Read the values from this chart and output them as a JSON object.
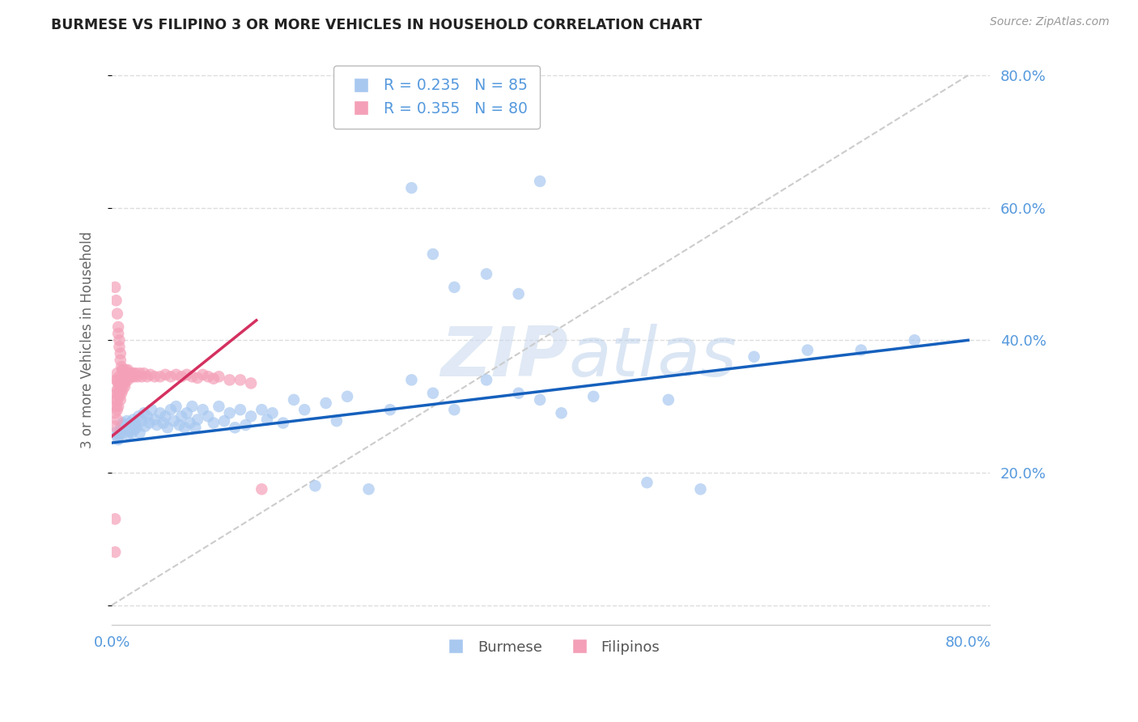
{
  "title": "BURMESE VS FILIPINO 3 OR MORE VEHICLES IN HOUSEHOLD CORRELATION CHART",
  "source": "Source: ZipAtlas.com",
  "ylabel": "3 or more Vehicles in Household",
  "xlim": [
    0.0,
    0.82
  ],
  "ylim": [
    -0.03,
    0.83
  ],
  "yticks": [
    0.0,
    0.2,
    0.4,
    0.6,
    0.8
  ],
  "xticks": [
    0.0,
    0.1,
    0.2,
    0.3,
    0.4,
    0.5,
    0.6,
    0.7,
    0.8
  ],
  "burmese_color": "#a8c8f0",
  "filipino_color": "#f4a0b8",
  "burmese_R": 0.235,
  "burmese_N": 85,
  "filipino_R": 0.355,
  "filipino_N": 80,
  "trend_blue": "#1560bd",
  "trend_pink": "#d43060",
  "ref_line_color": "#cccccc",
  "grid_color": "#dddddd",
  "axis_color": "#5599dd",
  "watermark_color": "#c8d8ee",
  "background_color": "#ffffff",
  "burmese_x": [
    0.003,
    0.005,
    0.006,
    0.007,
    0.008,
    0.009,
    0.01,
    0.01,
    0.011,
    0.012,
    0.013,
    0.014,
    0.015,
    0.015,
    0.016,
    0.017,
    0.018,
    0.019,
    0.02,
    0.02,
    0.021,
    0.022,
    0.023,
    0.025,
    0.026,
    0.028,
    0.03,
    0.031,
    0.033,
    0.035,
    0.037,
    0.04,
    0.042,
    0.045,
    0.048,
    0.05,
    0.052,
    0.055,
    0.058,
    0.06,
    0.063,
    0.065,
    0.068,
    0.07,
    0.073,
    0.075,
    0.078,
    0.08,
    0.085,
    0.09,
    0.095,
    0.1,
    0.105,
    0.11,
    0.115,
    0.12,
    0.125,
    0.13,
    0.14,
    0.145,
    0.15,
    0.16,
    0.17,
    0.18,
    0.19,
    0.2,
    0.21,
    0.22,
    0.24,
    0.26,
    0.28,
    0.3,
    0.32,
    0.35,
    0.38,
    0.4,
    0.42,
    0.45,
    0.5,
    0.52,
    0.55,
    0.6,
    0.65,
    0.7,
    0.75
  ],
  "burmese_y": [
    0.26,
    0.255,
    0.25,
    0.258,
    0.265,
    0.27,
    0.275,
    0.26,
    0.268,
    0.272,
    0.265,
    0.278,
    0.258,
    0.27,
    0.263,
    0.275,
    0.268,
    0.26,
    0.272,
    0.28,
    0.265,
    0.275,
    0.268,
    0.285,
    0.26,
    0.278,
    0.29,
    0.27,
    0.285,
    0.275,
    0.295,
    0.28,
    0.272,
    0.29,
    0.275,
    0.285,
    0.268,
    0.295,
    0.278,
    0.3,
    0.272,
    0.285,
    0.268,
    0.29,
    0.275,
    0.3,
    0.268,
    0.28,
    0.295,
    0.285,
    0.275,
    0.3,
    0.278,
    0.29,
    0.268,
    0.295,
    0.272,
    0.285,
    0.295,
    0.28,
    0.29,
    0.275,
    0.31,
    0.295,
    0.18,
    0.305,
    0.278,
    0.315,
    0.175,
    0.295,
    0.34,
    0.32,
    0.295,
    0.34,
    0.32,
    0.31,
    0.29,
    0.315,
    0.185,
    0.31,
    0.175,
    0.375,
    0.385,
    0.385,
    0.4
  ],
  "burmese_y_outliers": [
    0.63,
    0.64,
    0.53,
    0.5,
    0.48,
    0.47
  ],
  "burmese_x_outliers": [
    0.28,
    0.4,
    0.3,
    0.35,
    0.32,
    0.38
  ],
  "filipino_x": [
    0.003,
    0.003,
    0.003,
    0.004,
    0.004,
    0.004,
    0.005,
    0.005,
    0.005,
    0.005,
    0.005,
    0.005,
    0.006,
    0.006,
    0.006,
    0.007,
    0.007,
    0.007,
    0.008,
    0.008,
    0.008,
    0.009,
    0.009,
    0.01,
    0.01,
    0.01,
    0.011,
    0.011,
    0.012,
    0.012,
    0.013,
    0.013,
    0.014,
    0.015,
    0.015,
    0.016,
    0.017,
    0.018,
    0.019,
    0.02,
    0.021,
    0.022,
    0.024,
    0.026,
    0.028,
    0.03,
    0.033,
    0.036,
    0.04,
    0.045,
    0.05,
    0.055,
    0.06,
    0.065,
    0.07,
    0.075,
    0.08,
    0.085,
    0.09,
    0.095,
    0.1,
    0.11,
    0.12,
    0.13,
    0.14,
    0.003,
    0.004,
    0.005,
    0.006,
    0.006,
    0.007,
    0.007,
    0.008,
    0.008,
    0.009,
    0.01,
    0.011,
    0.012,
    0.003,
    0.003
  ],
  "filipino_y": [
    0.27,
    0.29,
    0.31,
    0.3,
    0.32,
    0.34,
    0.28,
    0.295,
    0.31,
    0.325,
    0.34,
    0.35,
    0.3,
    0.32,
    0.335,
    0.315,
    0.33,
    0.345,
    0.31,
    0.325,
    0.34,
    0.32,
    0.335,
    0.325,
    0.34,
    0.355,
    0.335,
    0.345,
    0.33,
    0.345,
    0.34,
    0.355,
    0.345,
    0.34,
    0.355,
    0.35,
    0.345,
    0.35,
    0.345,
    0.35,
    0.345,
    0.35,
    0.345,
    0.35,
    0.345,
    0.35,
    0.345,
    0.348,
    0.345,
    0.345,
    0.348,
    0.345,
    0.348,
    0.345,
    0.348,
    0.345,
    0.343,
    0.348,
    0.345,
    0.342,
    0.345,
    0.34,
    0.34,
    0.335,
    0.175,
    0.48,
    0.46,
    0.44,
    0.42,
    0.41,
    0.4,
    0.39,
    0.38,
    0.37,
    0.36,
    0.355,
    0.345,
    0.335,
    0.13,
    0.08
  ],
  "burmese_trend_x": [
    0.0,
    0.8
  ],
  "burmese_trend_y": [
    0.245,
    0.4
  ],
  "filipino_trend_x": [
    0.0,
    0.135
  ],
  "filipino_trend_y": [
    0.255,
    0.43
  ],
  "ref_line_x": [
    0.0,
    0.8
  ],
  "ref_line_y": [
    0.0,
    0.8
  ]
}
